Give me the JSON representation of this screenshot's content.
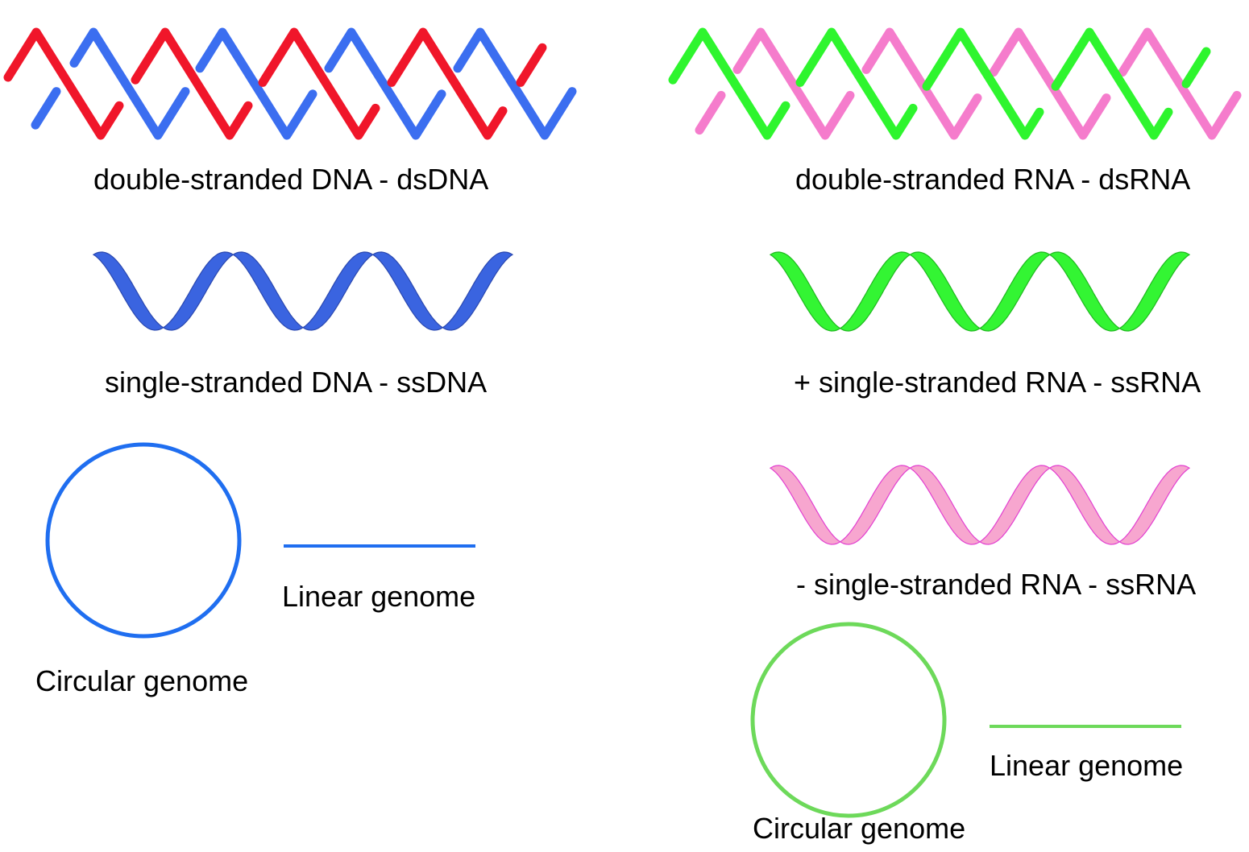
{
  "colors": {
    "dna_strand_a": "#f0162a",
    "dna_strand_b": "#3b6ef0",
    "ssdna_ribbon": "#3a64e0",
    "ssdna_edge": "#2a48b0",
    "rna_strand_a": "#2ef52e",
    "rna_strand_b": "#f57ccc",
    "pos_ssrna_ribbon": "#33f533",
    "pos_ssrna_edge": "#1fb81f",
    "neg_ssrna_ribbon": "#f7a6cf",
    "neg_ssrna_edge": "#e23fd0",
    "dna_genome": "#1f6ef0",
    "rna_genome": "#6dd95a"
  },
  "dna": {
    "ds_label": "double-stranded DNA - dsDNA",
    "ss_label": "single-stranded DNA - ssDNA",
    "circular_label": "Circular genome",
    "linear_label": "Linear genome"
  },
  "rna": {
    "ds_label": "double-stranded RNA - dsRNA",
    "pos_ss_label": "+ single-stranded RNA - ssRNA",
    "neg_ss_label": "- single-stranded RNA - ssRNA",
    "circular_label": "Circular genome",
    "linear_label": "Linear genome"
  }
}
